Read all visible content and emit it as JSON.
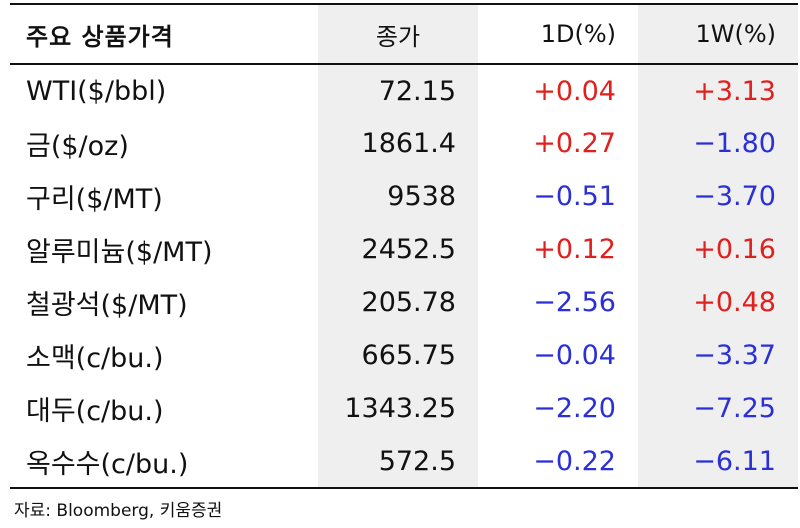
{
  "header": {
    "name": "주요 상품가격",
    "close": "종가",
    "d1": "1D(%)",
    "w1": "1W(%)"
  },
  "rows": [
    {
      "name": "WTI($/bbl)",
      "close": "72.15",
      "d1": "+0.04",
      "w1": "+3.13"
    },
    {
      "name": "금($/oz)",
      "close": "1861.4",
      "d1": "+0.27",
      "w1": "−1.80"
    },
    {
      "name": "구리($/MT)",
      "close": "9538",
      "d1": "−0.51",
      "w1": "−3.70"
    },
    {
      "name": "알루미늄($/MT)",
      "close": "2452.5",
      "d1": "+0.12",
      "w1": "+0.16"
    },
    {
      "name": "철광석($/MT)",
      "close": "205.78",
      "d1": "−2.56",
      "w1": "+0.48"
    },
    {
      "name": "소맥(c/bu.)",
      "close": "665.75",
      "d1": "−0.04",
      "w1": "−3.37"
    },
    {
      "name": "대두(c/bu.)",
      "close": "1343.25",
      "d1": "−2.20",
      "w1": "−7.25"
    },
    {
      "name": "옥수수(c/bu.)",
      "close": "572.5",
      "d1": "−0.22",
      "w1": "−6.11"
    }
  ],
  "source": "자료: Bloomberg, 키움증권",
  "colors": {
    "positive": "#e0201c",
    "negative": "#2a2fd6",
    "shade": "#efefef"
  }
}
